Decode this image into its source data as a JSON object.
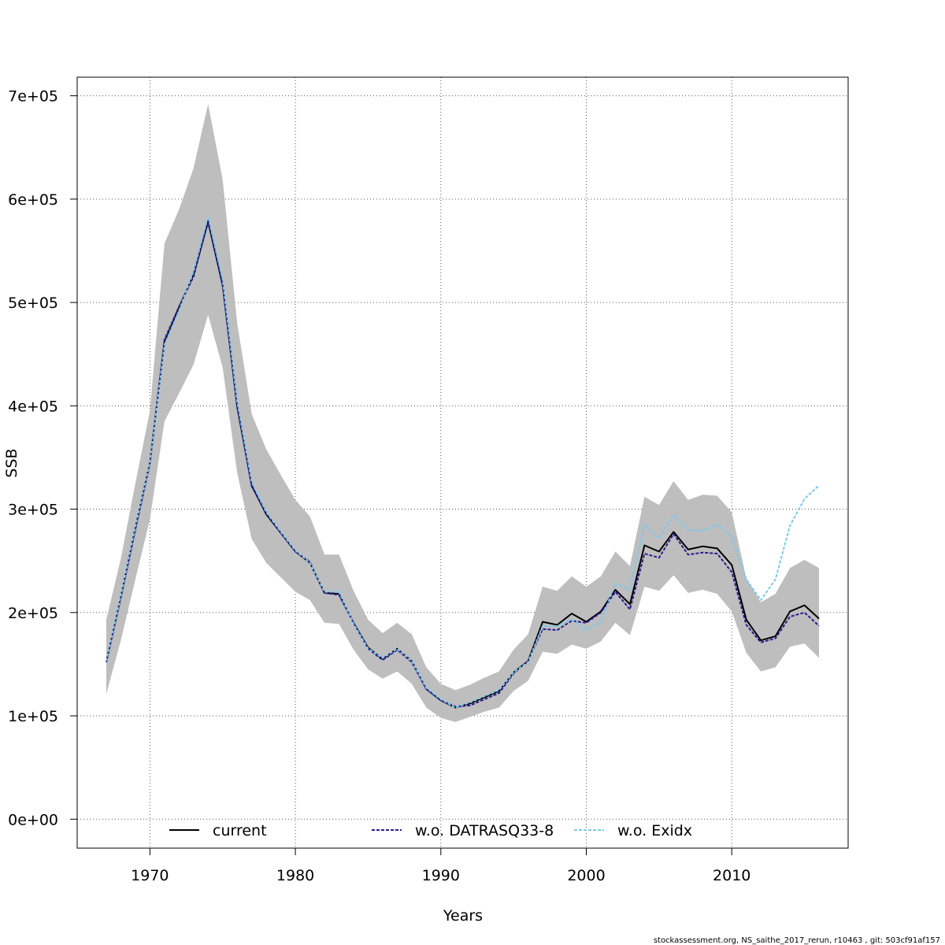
{
  "chart_data": {
    "type": "line",
    "xlabel": "Years",
    "ylabel": "SSB",
    "xlim": [
      1965,
      2018
    ],
    "ylim": [
      -28000,
      718000
    ],
    "x_ticks": [
      1970,
      1980,
      1990,
      2000,
      2010
    ],
    "x_tick_labels": [
      "1970",
      "1980",
      "1990",
      "2000",
      "2010"
    ],
    "y_ticks": [
      0,
      100000,
      200000,
      300000,
      400000,
      500000,
      600000,
      700000
    ],
    "y_tick_labels": [
      "0e+00",
      "1e+05",
      "2e+05",
      "3e+05",
      "4e+05",
      "5e+05",
      "6e+05",
      "7e+05"
    ],
    "grid": true,
    "legend_position": "bottom",
    "x": [
      1967,
      1968,
      1969,
      1970,
      1971,
      1972,
      1973,
      1974,
      1975,
      1976,
      1977,
      1978,
      1979,
      1980,
      1981,
      1982,
      1983,
      1984,
      1985,
      1986,
      1987,
      1988,
      1989,
      1990,
      1991,
      1992,
      1993,
      1994,
      1995,
      1996,
      1997,
      1998,
      1999,
      2000,
      2001,
      2002,
      2003,
      2004,
      2005,
      2006,
      2007,
      2008,
      2009,
      2010,
      2011,
      2012,
      2013,
      2014,
      2015,
      2016
    ],
    "band": {
      "color": "#bebebe",
      "lower": [
        121000,
        173000,
        232000,
        290000,
        385000,
        412000,
        440000,
        488000,
        437000,
        335000,
        271000,
        248000,
        234000,
        220000,
        212000,
        190000,
        189000,
        164000,
        145000,
        136000,
        143000,
        131000,
        108000,
        98000,
        94000,
        99000,
        104000,
        108000,
        124000,
        134000,
        162000,
        160000,
        169000,
        165000,
        172000,
        190000,
        178000,
        225000,
        221000,
        236000,
        219000,
        222000,
        218000,
        201000,
        161000,
        143000,
        147000,
        167000,
        170000,
        156000
      ],
      "upper": [
        193000,
        252000,
        325000,
        395000,
        557000,
        590000,
        630000,
        692000,
        619000,
        480000,
        392000,
        358000,
        333000,
        309000,
        293000,
        256000,
        256000,
        221000,
        193000,
        180000,
        190000,
        179000,
        147000,
        131000,
        125000,
        130000,
        137000,
        143000,
        164000,
        179000,
        225000,
        221000,
        235000,
        225000,
        235000,
        259000,
        245000,
        312000,
        304000,
        327000,
        309000,
        314000,
        313000,
        297000,
        233000,
        210000,
        218000,
        243000,
        251000,
        243000
      ]
    },
    "series": [
      {
        "name": "current",
        "color": "#000000",
        "dash": "",
        "values": [
          152000,
          215000,
          282000,
          345000,
          462000,
          495000,
          527000,
          578000,
          517000,
          399000,
          323000,
          295000,
          277000,
          259000,
          248000,
          219000,
          218000,
          190000,
          166000,
          155000,
          165000,
          153000,
          126000,
          115000,
          108000,
          112000,
          118000,
          124000,
          142000,
          153000,
          191000,
          188000,
          199000,
          191000,
          201000,
          222000,
          208000,
          265000,
          259000,
          278000,
          261000,
          264000,
          262000,
          246000,
          193000,
          173000,
          177000,
          201000,
          207000,
          194000
        ]
      },
      {
        "name": "w.o. DATRASQ33-8",
        "color": "#2d1b8e",
        "dash": "4,2",
        "values": [
          152000,
          214000,
          280000,
          344000,
          464000,
          496000,
          525000,
          579000,
          516000,
          400000,
          322000,
          296000,
          277000,
          259000,
          249000,
          219000,
          217000,
          190000,
          165000,
          154000,
          164000,
          152000,
          126000,
          115000,
          109000,
          110000,
          116000,
          122000,
          141000,
          153000,
          184000,
          183000,
          192000,
          190000,
          200000,
          220000,
          203000,
          257000,
          253000,
          276000,
          256000,
          258000,
          257000,
          239000,
          188000,
          171000,
          175000,
          196000,
          200000,
          187000
        ]
      },
      {
        "name": "w.o. Exidx",
        "color": "#7ec8ec",
        "dash": "4,2",
        "values": [
          153000,
          216000,
          283000,
          345000,
          459000,
          492000,
          530000,
          583000,
          522000,
          404000,
          326000,
          297000,
          278000,
          260000,
          248000,
          220000,
          220000,
          189000,
          165000,
          156000,
          165000,
          153000,
          127000,
          116000,
          108000,
          113000,
          119000,
          125000,
          142000,
          152000,
          187000,
          187000,
          193000,
          183000,
          191000,
          228000,
          222000,
          285000,
          272000,
          294000,
          280000,
          279000,
          285000,
          274000,
          232000,
          212000,
          232000,
          284000,
          310000,
          323000
        ]
      }
    ]
  },
  "footer": "stockassessment.org, NS_saithe_2017_rerun, r10463 , git: 503cf91af157"
}
